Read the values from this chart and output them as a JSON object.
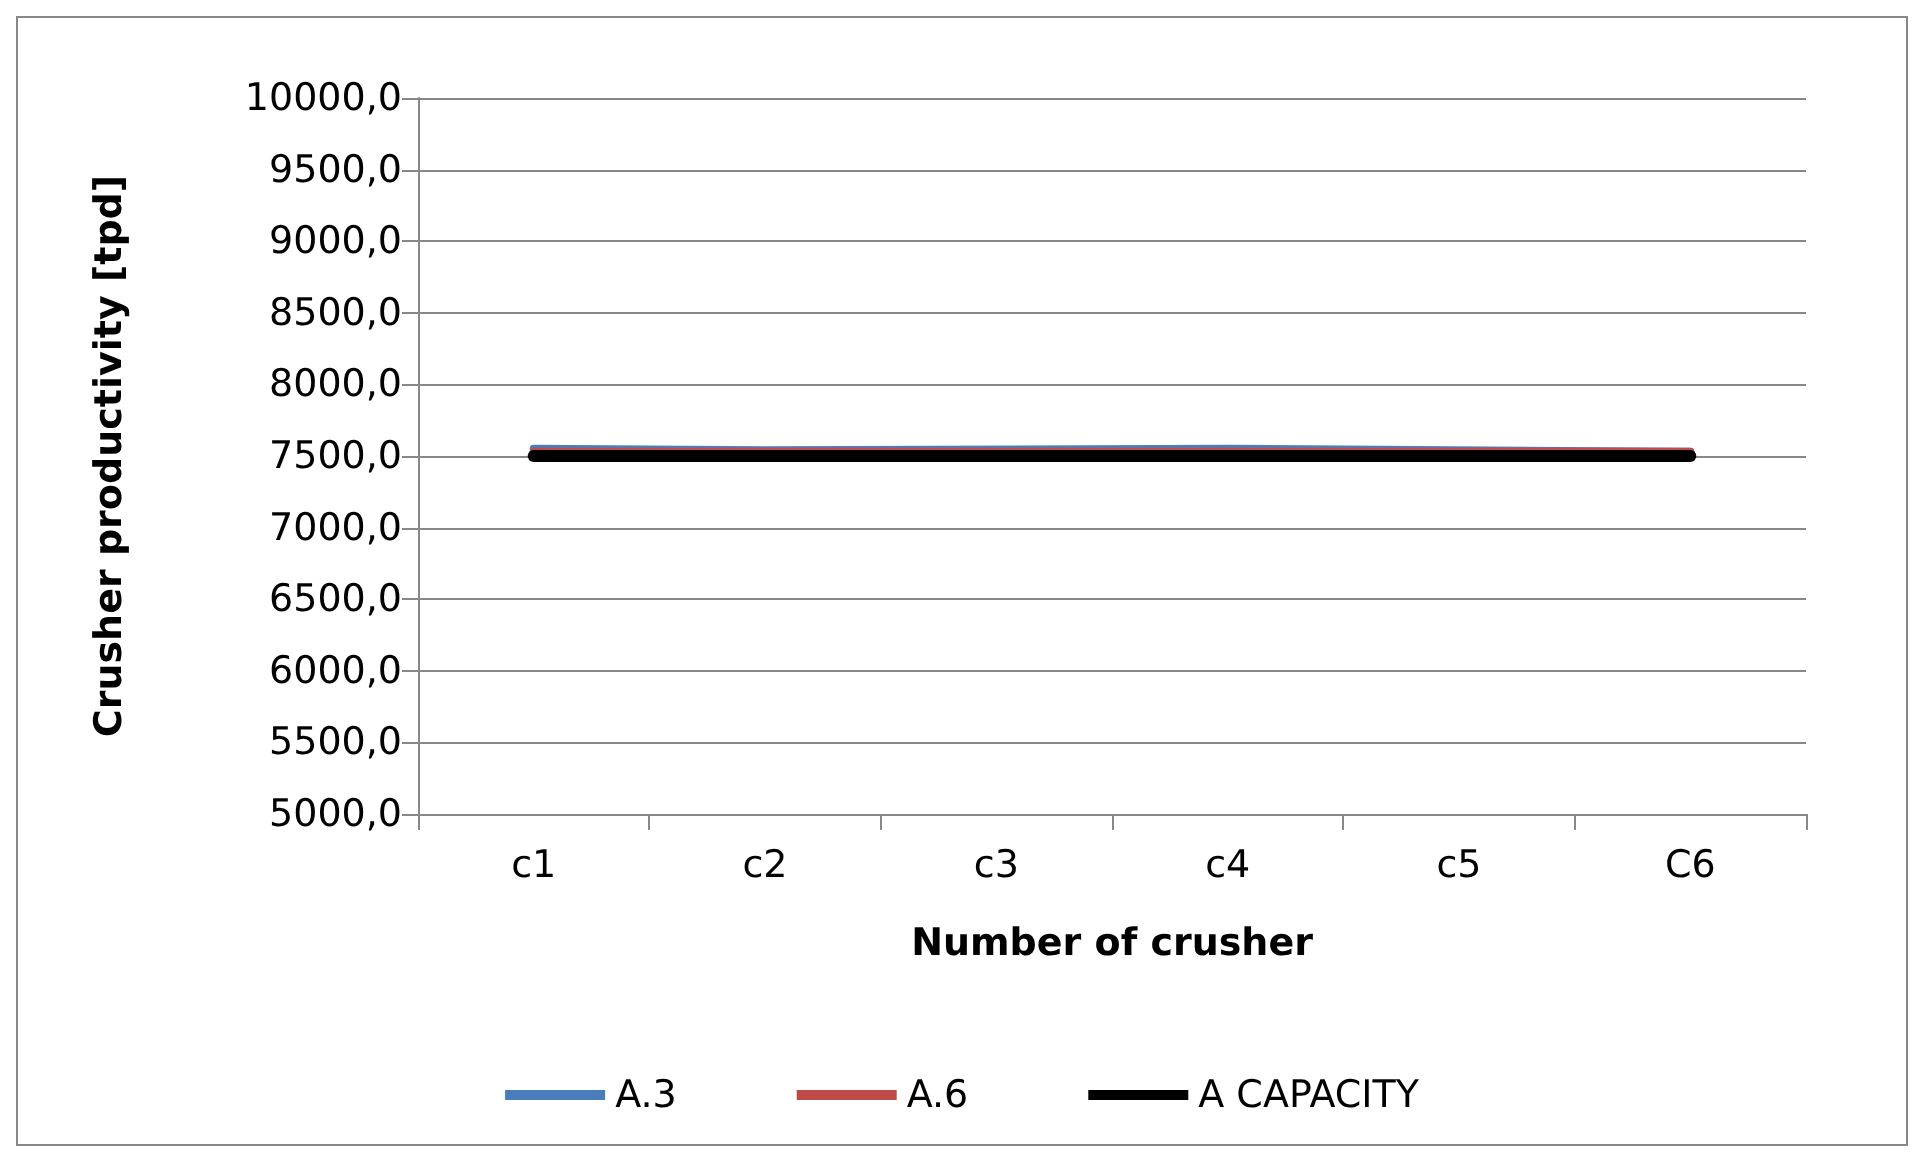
{
  "chart_data": {
    "type": "line",
    "xlabel": "Number of crusher",
    "ylabel": "Crusher productivity [tpd]",
    "categories": [
      "c1",
      "c2",
      "c3",
      "c4",
      "c5",
      "C6"
    ],
    "series": [
      {
        "name": "A.3",
        "color": "#4a7ebb",
        "values": [
          7550,
          7540,
          null,
          7550,
          null,
          7530
        ]
      },
      {
        "name": "A.6",
        "color": "#be4b48",
        "values": [
          7530,
          7530,
          7530,
          7530,
          7530,
          7530
        ]
      },
      {
        "name": "A CAPACITY",
        "color": "#000000",
        "values": [
          7500,
          7500,
          7500,
          7500,
          7500,
          7500
        ]
      }
    ],
    "ylim": [
      5000,
      10000
    ],
    "yticks": [
      {
        "value": 5000,
        "label": "5000,0"
      },
      {
        "value": 5500,
        "label": "5500,0"
      },
      {
        "value": 6000,
        "label": "6000,0"
      },
      {
        "value": 6500,
        "label": "6500,0"
      },
      {
        "value": 7000,
        "label": "7000,0"
      },
      {
        "value": 7500,
        "label": "7500,0"
      },
      {
        "value": 8000,
        "label": "8000,0"
      },
      {
        "value": 8500,
        "label": "8500,0"
      },
      {
        "value": 9000,
        "label": "9000,0"
      },
      {
        "value": 9500,
        "label": "9500,0"
      },
      {
        "value": 10000,
        "label": "10000,0"
      }
    ],
    "grid": "y",
    "legend": "bottom",
    "marker": "none"
  }
}
